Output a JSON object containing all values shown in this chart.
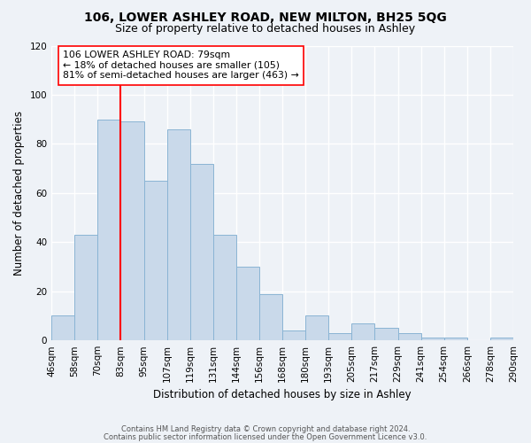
{
  "title": "106, LOWER ASHLEY ROAD, NEW MILTON, BH25 5QG",
  "subtitle": "Size of property relative to detached houses in Ashley",
  "xlabel": "Distribution of detached houses by size in Ashley",
  "ylabel": "Number of detached properties",
  "footer_lines": [
    "Contains HM Land Registry data © Crown copyright and database right 2024.",
    "Contains public sector information licensed under the Open Government Licence v3.0."
  ],
  "bin_labels": [
    "46sqm",
    "58sqm",
    "70sqm",
    "83sqm",
    "95sqm",
    "107sqm",
    "119sqm",
    "131sqm",
    "144sqm",
    "156sqm",
    "168sqm",
    "180sqm",
    "193sqm",
    "205sqm",
    "217sqm",
    "229sqm",
    "241sqm",
    "254sqm",
    "266sqm",
    "278sqm",
    "290sqm"
  ],
  "bar_heights": [
    10,
    43,
    90,
    89,
    65,
    86,
    72,
    43,
    30,
    19,
    4,
    10,
    3,
    7,
    5,
    3,
    1,
    1,
    0,
    1
  ],
  "bar_color": "#c9d9ea",
  "bar_edge_color": "#8ab4d4",
  "property_line_color": "red",
  "annotation_text": "106 LOWER ASHLEY ROAD: 79sqm\n← 18% of detached houses are smaller (105)\n81% of semi-detached houses are larger (463) →",
  "ylim": [
    0,
    120
  ],
  "yticks": [
    0,
    20,
    40,
    60,
    80,
    100,
    120
  ],
  "background_color": "#eef2f7",
  "grid_color": "#ffffff",
  "title_fontsize": 10,
  "subtitle_fontsize": 9,
  "ylabel_fontsize": 8.5,
  "xlabel_fontsize": 8.5,
  "tick_fontsize": 7.5,
  "annot_fontsize": 7.8,
  "footer_fontsize": 6.0
}
